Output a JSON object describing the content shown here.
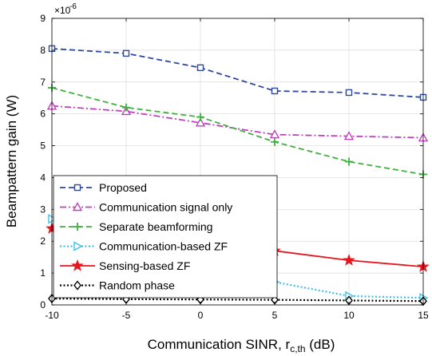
{
  "chart_data": {
    "type": "line",
    "xlabel_main": "Communication SINR, r",
    "xlabel_sub": "c,th",
    "xlabel_unit": " (dB)",
    "ylabel": "Beampattern gain (W)",
    "y_multiplier_base": "×10",
    "y_multiplier_exp": "-6",
    "xlim": [
      -10,
      15
    ],
    "ylim": [
      0,
      9
    ],
    "x_ticks": [
      -10,
      -5,
      0,
      5,
      10,
      15
    ],
    "y_ticks": [
      0,
      1,
      2,
      3,
      4,
      5,
      6,
      7,
      8,
      9
    ],
    "grid": true,
    "legend_position": "lower-left",
    "x": [
      -10,
      -5,
      0,
      5,
      10,
      15
    ],
    "series": [
      {
        "name": "Proposed",
        "values": [
          8.05,
          7.9,
          7.45,
          6.72,
          6.67,
          6.52
        ],
        "color": "#2E4A9E",
        "dash": "dashed",
        "marker": "square"
      },
      {
        "name": "Communication signal only",
        "values": [
          6.25,
          6.08,
          5.72,
          5.35,
          5.3,
          5.25
        ],
        "color": "#C040C0",
        "dash": "dashdot",
        "marker": "triangle-up"
      },
      {
        "name": "Separate beamforming",
        "values": [
          6.82,
          6.2,
          5.9,
          5.12,
          4.5,
          4.1
        ],
        "color": "#40B040",
        "dash": "dashed",
        "marker": "plus"
      },
      {
        "name": "Communication-based ZF",
        "values": [
          2.7,
          2.0,
          1.6,
          0.72,
          0.28,
          0.22
        ],
        "color": "#40C0E8",
        "dash": "dotted",
        "marker": "triangle-right"
      },
      {
        "name": "Sensing-based ZF",
        "values": [
          2.4,
          2.2,
          1.95,
          1.7,
          1.4,
          1.2
        ],
        "color": "#E8141E",
        "dash": "solid",
        "marker": "star"
      },
      {
        "name": "Random phase",
        "values": [
          0.2,
          0.18,
          0.17,
          0.16,
          0.14,
          0.12
        ],
        "color": "#000000",
        "dash": "dotted",
        "marker": "diamond"
      }
    ]
  }
}
